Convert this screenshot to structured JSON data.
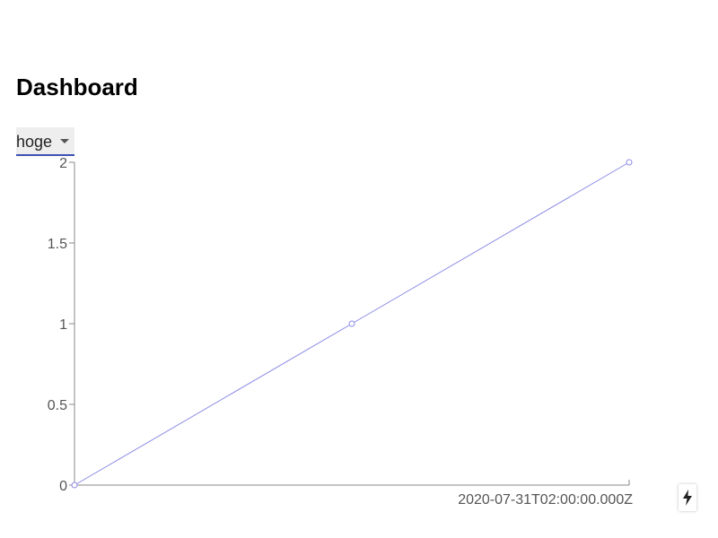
{
  "page": {
    "title": "Dashboard"
  },
  "series_select": {
    "value": "hoge",
    "icon": "caret-down-icon"
  },
  "fab": {
    "icon": "lightning-bolt-icon"
  },
  "colors": {
    "line": "#8c8ce6",
    "axis": "#888888",
    "select_underline": "#3f51b5"
  },
  "chart_data": {
    "type": "line",
    "y_ticks": [
      "0",
      "0.5",
      "1",
      "1.5",
      "2"
    ],
    "x_tick_labels": [
      "2020-07-31T02:00:00.000Z"
    ],
    "ylim": [
      0,
      2
    ],
    "grid": false,
    "series": [
      {
        "values": [
          0,
          1,
          2
        ]
      }
    ]
  }
}
